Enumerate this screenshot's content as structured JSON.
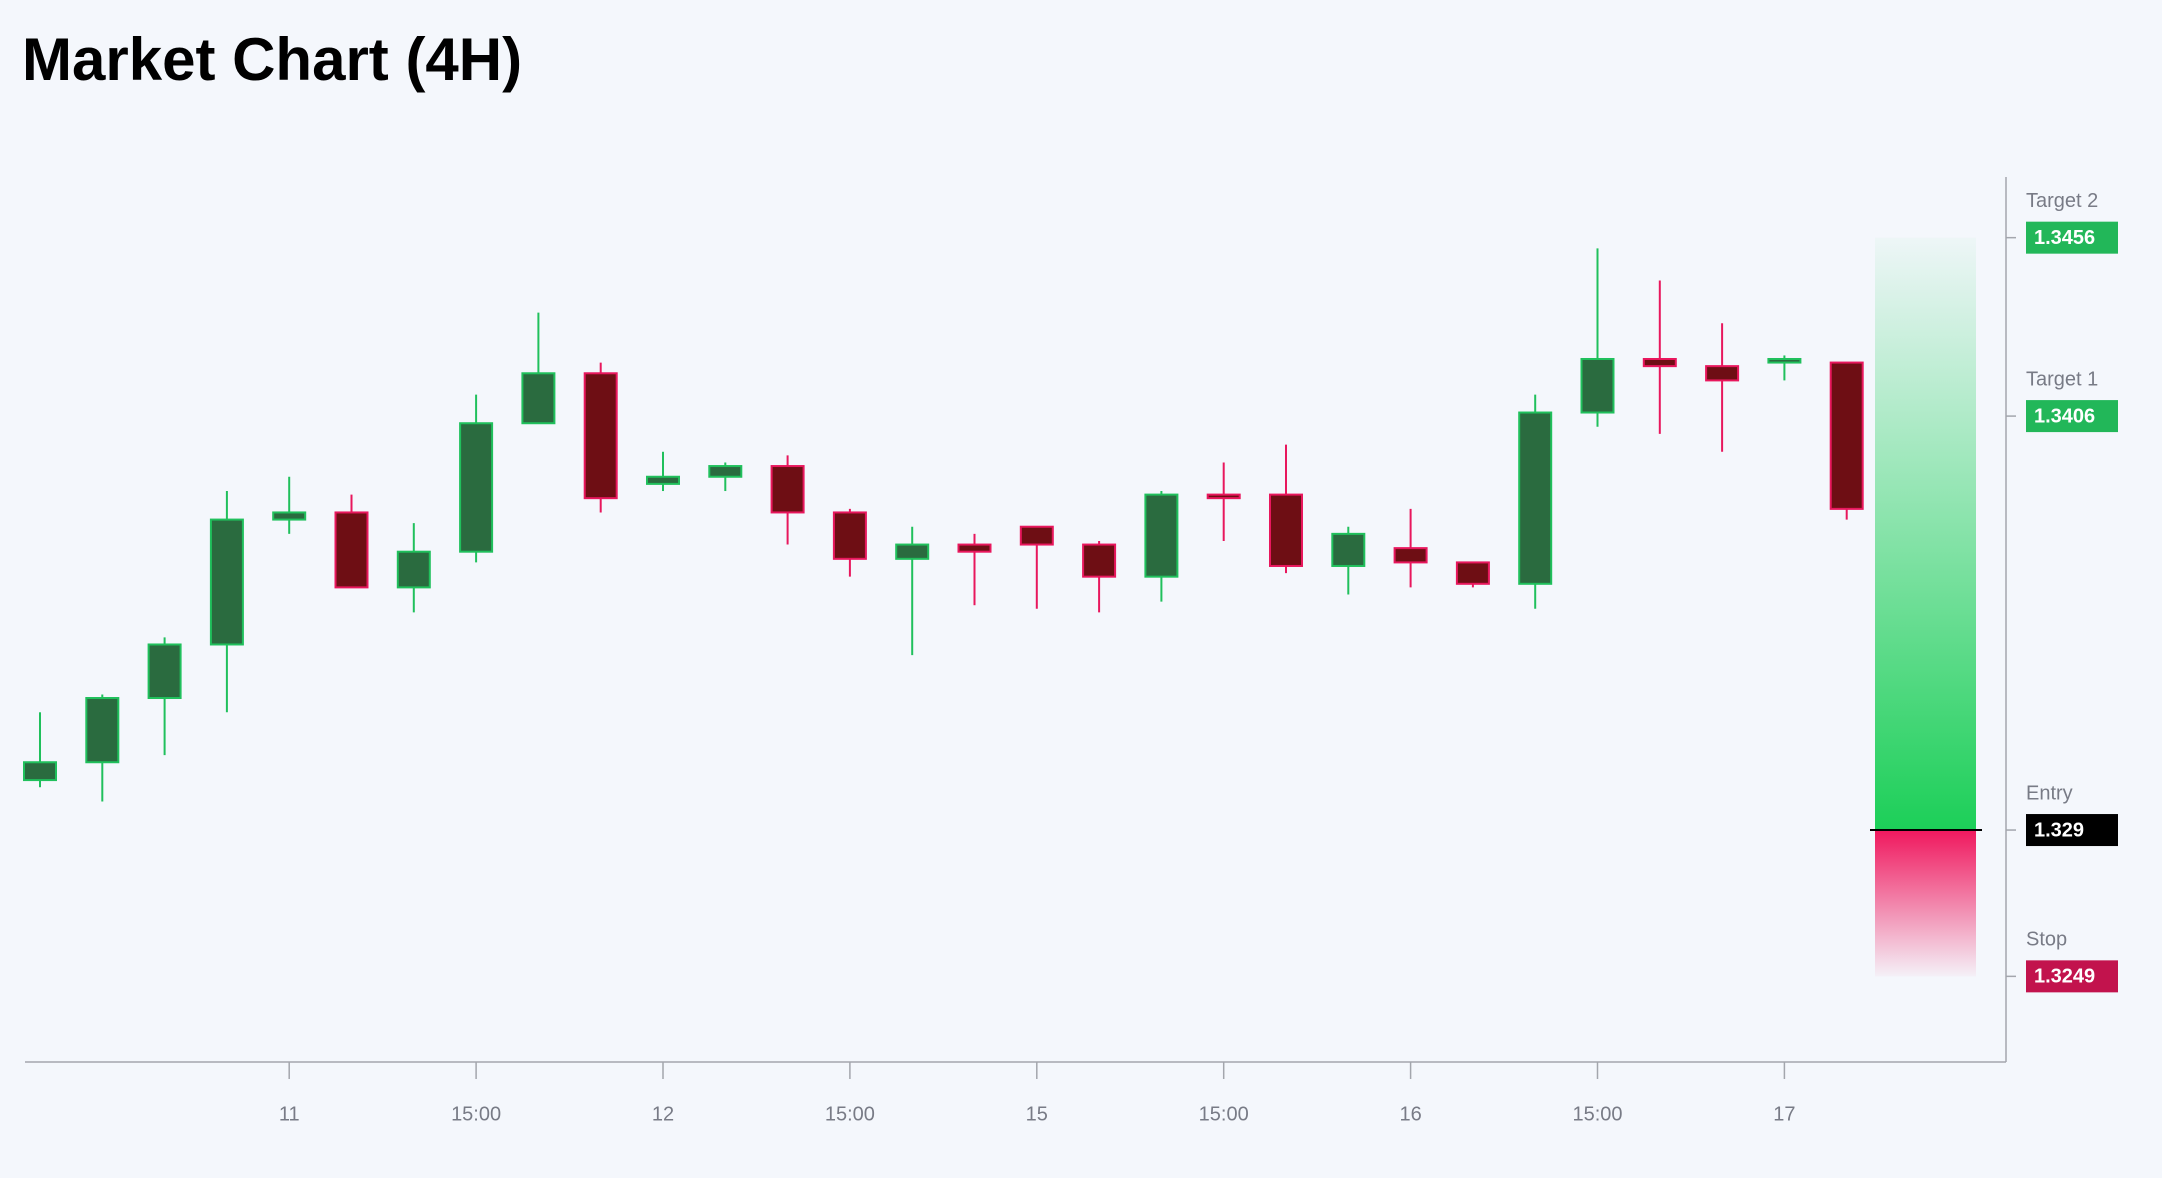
{
  "chart_data": {
    "type": "candlestick",
    "title": "Market Chart (4H)",
    "categories": [
      null,
      null,
      null,
      null,
      "11",
      null,
      null,
      "15:00",
      null,
      null,
      "12",
      null,
      null,
      "15:00",
      null,
      null,
      "15",
      null,
      null,
      "15:00",
      null,
      null,
      "16",
      null,
      null,
      "15:00",
      null,
      null,
      "17",
      null
    ],
    "open": [
      1.3304,
      1.3309,
      1.3327,
      1.3342,
      1.3377,
      1.3379,
      1.3358,
      1.3368,
      1.3404,
      1.3418,
      1.3387,
      1.3389,
      1.3392,
      1.3379,
      1.3366,
      1.337,
      1.3375,
      1.337,
      1.3361,
      1.3384,
      1.3384,
      1.3364,
      1.3369,
      1.3365,
      1.3359,
      1.3407,
      1.3422,
      1.342,
      1.3421,
      1.3421
    ],
    "high": [
      1.3323,
      1.3328,
      1.3344,
      1.3385,
      1.3389,
      1.3384,
      1.3376,
      1.3412,
      1.3435,
      1.3421,
      1.3396,
      1.3393,
      1.3395,
      1.338,
      1.3375,
      1.3373,
      1.3375,
      1.3371,
      1.3385,
      1.3393,
      1.3398,
      1.3375,
      1.338,
      1.3365,
      1.3412,
      1.3453,
      1.3444,
      1.3432,
      1.3423,
      1.3421
    ],
    "low": [
      1.3302,
      1.3298,
      1.3311,
      1.3323,
      1.3373,
      1.3358,
      1.3351,
      1.3365,
      1.3404,
      1.3379,
      1.3385,
      1.3385,
      1.337,
      1.3361,
      1.3339,
      1.3353,
      1.3352,
      1.3351,
      1.3354,
      1.3371,
      1.3362,
      1.3356,
      1.3358,
      1.3358,
      1.3352,
      1.3403,
      1.3401,
      1.3396,
      1.3416,
      1.3377
    ],
    "close": [
      1.3309,
      1.3327,
      1.3342,
      1.3377,
      1.3379,
      1.3358,
      1.3368,
      1.3404,
      1.3418,
      1.3383,
      1.3389,
      1.3392,
      1.3379,
      1.3366,
      1.337,
      1.3368,
      1.337,
      1.3361,
      1.3384,
      1.3383,
      1.3364,
      1.3373,
      1.3365,
      1.3359,
      1.3407,
      1.3422,
      1.342,
      1.3416,
      1.3422,
      1.338
    ],
    "up_color": "#20c05c",
    "up_fill": "#2a6b3f",
    "down_color": "#e8175d",
    "down_fill": "#6e0e14",
    "ylim": [
      1.3225,
      1.3473
    ],
    "levels": [
      {
        "name": "Target 2",
        "value": 1.3456,
        "color": "#22b759"
      },
      {
        "name": "Target 1",
        "value": 1.3406,
        "color": "#22b759"
      },
      {
        "name": "Entry",
        "value": 1.329,
        "color": "#000000"
      },
      {
        "name": "Stop",
        "value": 1.3249,
        "color": "#c2134d"
      }
    ]
  }
}
